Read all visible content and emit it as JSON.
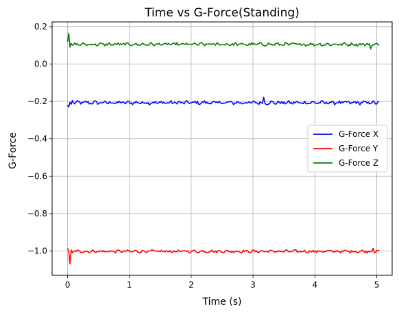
{
  "chart_data": {
    "type": "line",
    "title": "Time vs G-Force(Standing)",
    "xlabel": "Time (s)",
    "ylabel": "G-Force",
    "xlim": [
      -0.25,
      5.25
    ],
    "ylim": [
      -1.13,
      0.225
    ],
    "xticks": [
      0,
      1,
      2,
      3,
      4,
      5
    ],
    "xtick_labels": [
      "0",
      "1",
      "2",
      "3",
      "4",
      "5"
    ],
    "yticks": [
      -1.0,
      -0.8,
      -0.6,
      -0.4,
      -0.2,
      0.0,
      0.2
    ],
    "ytick_labels": [
      "−1.0",
      "−0.8",
      "−0.6",
      "−0.4",
      "−0.2",
      "0.0",
      "0.2"
    ],
    "grid": true,
    "legend_position": "center-right",
    "x_range": [
      0,
      5.04
    ],
    "series": [
      {
        "name": "G-Force X",
        "color": "#0000ff",
        "base": -0.207,
        "noise": 0.008,
        "start_values": [
          -0.22,
          -0.23,
          -0.205,
          -0.215,
          -0.195
        ],
        "spikes": [
          {
            "x": 3.17,
            "y": -0.178
          }
        ]
      },
      {
        "name": "G-Force Y",
        "color": "#ff0000",
        "base": -1.002,
        "noise": 0.006,
        "start_values": [
          -0.985,
          -1.0,
          -1.07,
          -0.995,
          -1.01
        ],
        "spikes": [
          {
            "x": 4.95,
            "y": -0.985
          }
        ]
      },
      {
        "name": "G-Force Z",
        "color": "#008000",
        "base": 0.105,
        "noise": 0.007,
        "start_values": [
          0.12,
          0.165,
          0.09,
          0.11,
          0.1
        ],
        "spikes": [
          {
            "x": 4.9,
            "y": 0.08
          }
        ]
      }
    ]
  }
}
